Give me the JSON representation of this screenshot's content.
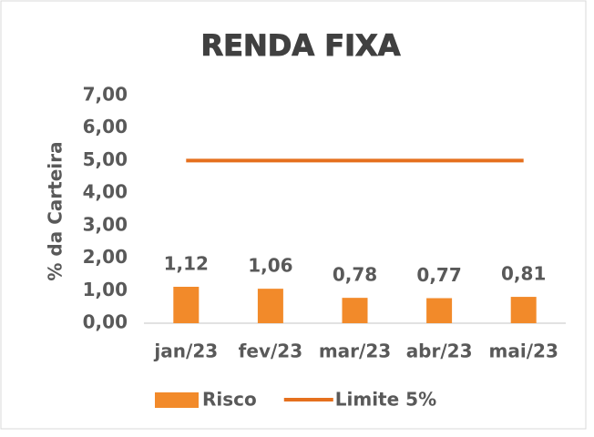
{
  "chart_data": {
    "type": "bar",
    "title": "RENDA FIXA",
    "y_label": "% da Carteira",
    "categories": [
      "jan/23",
      "fev/23",
      "mar/23",
      "abr/23",
      "mai/23"
    ],
    "series": [
      {
        "name": "Risco",
        "type": "bar",
        "color": "#f28a2a",
        "values": [
          1.12,
          1.06,
          0.78,
          0.77,
          0.81
        ],
        "value_labels": [
          "1,12",
          "1,06",
          "0,78",
          "0,77",
          "0,81"
        ]
      },
      {
        "name": "Limite 5%",
        "type": "line",
        "color": "#e5701e",
        "values": [
          5,
          5,
          5,
          5,
          5
        ]
      }
    ],
    "ylim": [
      0,
      7
    ],
    "yticks": [
      {
        "value": 0,
        "label": "0,00"
      },
      {
        "value": 1,
        "label": "1,00"
      },
      {
        "value": 2,
        "label": "2,00"
      },
      {
        "value": 3,
        "label": "3,00"
      },
      {
        "value": 4,
        "label": "4,00"
      },
      {
        "value": 5,
        "label": "5,00"
      },
      {
        "value": 6,
        "label": "6,00"
      },
      {
        "value": 7,
        "label": "7,00"
      }
    ],
    "grid": false,
    "legend": "bottom"
  }
}
